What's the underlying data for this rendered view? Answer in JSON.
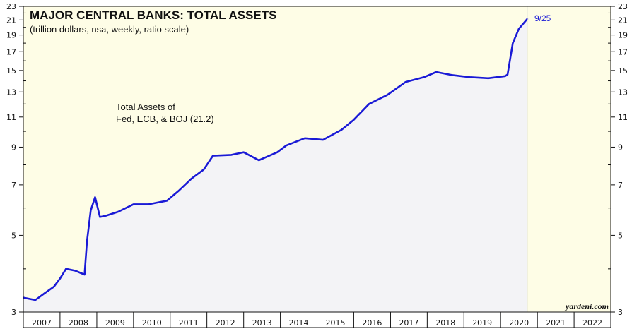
{
  "chart_data": {
    "type": "area",
    "title": "MAJOR CENTRAL BANKS: TOTAL ASSETS",
    "subtitle": "(trillion dollars, nsa, weekly, ratio scale)",
    "y_scale": "log",
    "ylim": [
      3,
      23
    ],
    "y_ticks": [
      3,
      5,
      7,
      9,
      11,
      13,
      15,
      17,
      19,
      21,
      23
    ],
    "x_tick_labels": [
      "2007",
      "2008",
      "2009",
      "2010",
      "2011",
      "2012",
      "2013",
      "2014",
      "2015",
      "2016",
      "2017",
      "2018",
      "2019",
      "2020",
      "2021",
      "2022"
    ],
    "xlim": [
      "2007-01-01",
      "2023-01-01"
    ],
    "grid": false,
    "series": [
      {
        "name": "Total Assets of Fed, ECB, & BOJ (21.2)",
        "color": "#1a1ad6",
        "points": [
          [
            "2007-01-01",
            3.3
          ],
          [
            "2007-05-01",
            3.25
          ],
          [
            "2007-08-01",
            3.4
          ],
          [
            "2007-11-01",
            3.55
          ],
          [
            "2008-01-01",
            3.75
          ],
          [
            "2008-03-01",
            4.0
          ],
          [
            "2008-06-01",
            3.95
          ],
          [
            "2008-09-01",
            3.85
          ],
          [
            "2008-09-25",
            4.8
          ],
          [
            "2008-11-01",
            5.9
          ],
          [
            "2008-12-15",
            6.45
          ],
          [
            "2009-02-01",
            5.65
          ],
          [
            "2009-04-01",
            5.7
          ],
          [
            "2009-08-01",
            5.85
          ],
          [
            "2010-01-01",
            6.15
          ],
          [
            "2010-06-01",
            6.15
          ],
          [
            "2010-12-01",
            6.3
          ],
          [
            "2011-04-01",
            6.75
          ],
          [
            "2011-08-01",
            7.3
          ],
          [
            "2011-12-01",
            7.75
          ],
          [
            "2012-03-01",
            8.5
          ],
          [
            "2012-09-01",
            8.55
          ],
          [
            "2013-01-01",
            8.7
          ],
          [
            "2013-06-01",
            8.25
          ],
          [
            "2013-12-01",
            8.7
          ],
          [
            "2014-03-01",
            9.1
          ],
          [
            "2014-09-01",
            9.55
          ],
          [
            "2015-03-01",
            9.45
          ],
          [
            "2015-09-01",
            10.1
          ],
          [
            "2016-01-01",
            10.8
          ],
          [
            "2016-06-01",
            12.0
          ],
          [
            "2016-12-01",
            12.75
          ],
          [
            "2017-06-01",
            13.9
          ],
          [
            "2017-12-01",
            14.35
          ],
          [
            "2018-04-01",
            14.85
          ],
          [
            "2018-09-01",
            14.55
          ],
          [
            "2019-03-01",
            14.35
          ],
          [
            "2019-09-01",
            14.25
          ],
          [
            "2020-02-15",
            14.45
          ],
          [
            "2020-03-10",
            14.6
          ],
          [
            "2020-05-01",
            18.0
          ],
          [
            "2020-07-01",
            19.8
          ],
          [
            "2020-09-25",
            21.2
          ]
        ]
      }
    ],
    "annotations": {
      "series_label_line1": "Total Assets of",
      "series_label_line2": "Fed, ECB, & BOJ (21.2)",
      "end_label": "9/25",
      "source": "yardeni.com"
    },
    "colors": {
      "shaded_region": "#fefde6",
      "area_fill": "#f3f3f6",
      "line": "#1a1ad6",
      "end_label": "#1a1ad6"
    }
  }
}
